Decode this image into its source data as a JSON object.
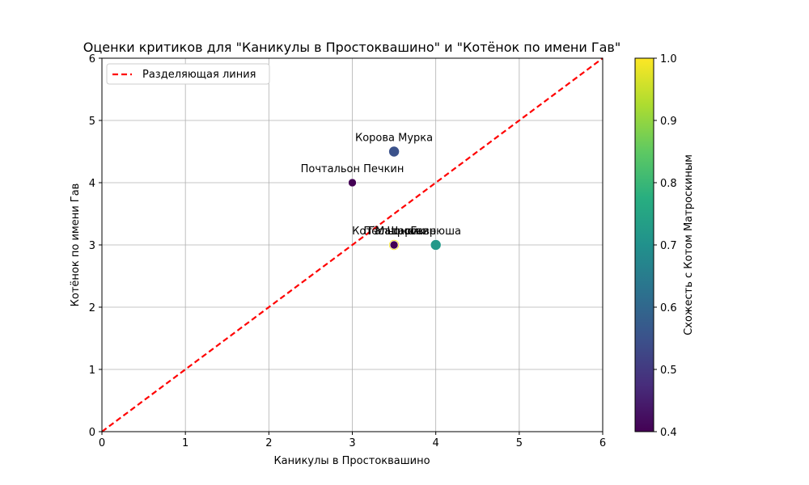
{
  "chart_data": {
    "type": "scatter",
    "title": "Оценки критиков для \"Каникулы в Простоквашино\" и \"Котёнок по имени Гав\"",
    "xlabel": "Каникулы в Простоквашино",
    "ylabel": "Котёнок по имени Гав",
    "xlim": [
      0,
      6
    ],
    "ylim": [
      0,
      6
    ],
    "xticks": [
      0,
      1,
      2,
      3,
      4,
      5,
      6
    ],
    "yticks": [
      0,
      1,
      2,
      3,
      4,
      5,
      6
    ],
    "grid": true,
    "legend": {
      "position": "top-left",
      "entries": [
        {
          "label": "Разделяющая линия",
          "color": "#ff0000",
          "style": "dashed"
        }
      ]
    },
    "divider_line": {
      "from": [
        0,
        0
      ],
      "to": [
        6,
        6
      ],
      "color": "#ff0000"
    },
    "colorbar": {
      "label": "Схожесть с Котом Матроскиным",
      "range": [
        0.4,
        1.0
      ],
      "ticks": [
        "0.4",
        "0.5",
        "0.6",
        "0.7",
        "0.8",
        "0.9",
        "1.0"
      ],
      "colormap": "viridis"
    },
    "points": [
      {
        "label": "Кот Матроскин",
        "x": 3.5,
        "y": 3.0,
        "similarity": 1.0
      },
      {
        "label": "Пёс Шарик",
        "x": 3.5,
        "y": 3.0,
        "similarity": 0.4
      },
      {
        "label": "Почтальон Печкин",
        "x": 3.0,
        "y": 4.0,
        "similarity": 0.4
      },
      {
        "label": "Корова Мурка",
        "x": 3.5,
        "y": 4.5,
        "similarity": 0.55
      },
      {
        "label": "Галчонок",
        "x": 3.5,
        "y": 3.0,
        "similarity": 0.45
      },
      {
        "label": "Гаврюша",
        "x": 4.0,
        "y": 3.0,
        "similarity": 0.72
      }
    ]
  }
}
